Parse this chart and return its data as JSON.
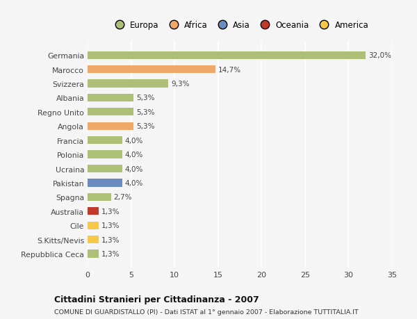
{
  "categories": [
    "Repubblica Ceca",
    "S.Kitts/Nevis",
    "Cile",
    "Australia",
    "Spagna",
    "Pakistan",
    "Ucraina",
    "Polonia",
    "Francia",
    "Angola",
    "Regno Unito",
    "Albania",
    "Svizzera",
    "Marocco",
    "Germania"
  ],
  "values": [
    1.3,
    1.3,
    1.3,
    1.3,
    2.7,
    4.0,
    4.0,
    4.0,
    4.0,
    5.3,
    5.3,
    5.3,
    9.3,
    14.7,
    32.0
  ],
  "labels": [
    "1,3%",
    "1,3%",
    "1,3%",
    "1,3%",
    "2,7%",
    "4,0%",
    "4,0%",
    "4,0%",
    "4,0%",
    "5,3%",
    "5,3%",
    "5,3%",
    "9,3%",
    "14,7%",
    "32,0%"
  ],
  "colors": [
    "#aec078",
    "#f5c84a",
    "#f5c84a",
    "#c0392b",
    "#aec078",
    "#6b8cbf",
    "#aec078",
    "#aec078",
    "#aec078",
    "#f0a868",
    "#aec078",
    "#aec078",
    "#aec078",
    "#f0a868",
    "#aec078"
  ],
  "legend": [
    {
      "label": "Europa",
      "color": "#aec078"
    },
    {
      "label": "Africa",
      "color": "#f0a868"
    },
    {
      "label": "Asia",
      "color": "#6b8cbf"
    },
    {
      "label": "Oceania",
      "color": "#c0392b"
    },
    {
      "label": "America",
      "color": "#f5c84a"
    }
  ],
  "title": "Cittadini Stranieri per Cittadinanza - 2007",
  "subtitle": "COMUNE DI GUARDISTALLO (PI) - Dati ISTAT al 1° gennaio 2007 - Elaborazione TUTTITALIA.IT",
  "xlim": [
    0,
    35
  ],
  "xticks": [
    0,
    5,
    10,
    15,
    20,
    25,
    30,
    35
  ],
  "background_color": "#f5f5f5",
  "grid_color": "#ffffff",
  "bar_height": 0.55
}
